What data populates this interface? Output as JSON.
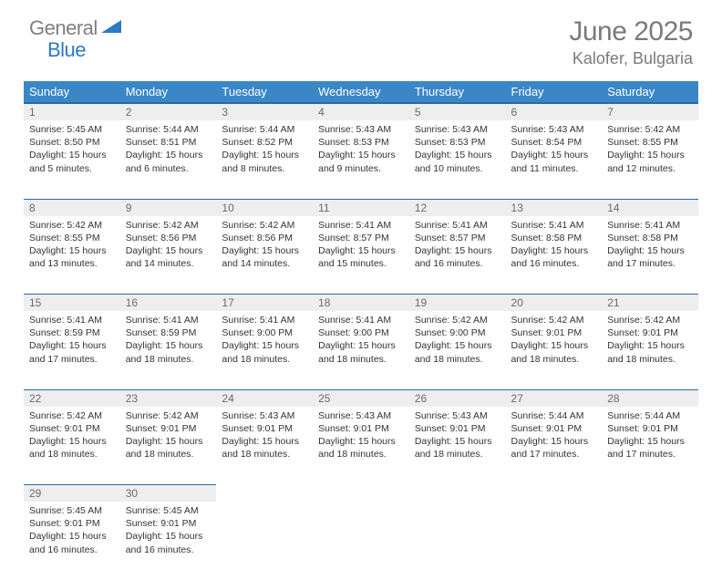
{
  "logo": {
    "gray": "General",
    "blue": "Blue"
  },
  "title": "June 2025",
  "location": "Kalofer, Bulgaria",
  "colors": {
    "header_bg": "#3a87c8",
    "header_border": "#2a6aa3",
    "daynum_bg": "#eeeeee",
    "text": "#333333",
    "muted": "#7a7a7a",
    "logo_blue": "#2f78c3"
  },
  "day_headers": [
    "Sunday",
    "Monday",
    "Tuesday",
    "Wednesday",
    "Thursday",
    "Friday",
    "Saturday"
  ],
  "weeks": [
    [
      {
        "n": "1",
        "sr": "5:45 AM",
        "ss": "8:50 PM",
        "dl": "15 hours and 5 minutes."
      },
      {
        "n": "2",
        "sr": "5:44 AM",
        "ss": "8:51 PM",
        "dl": "15 hours and 6 minutes."
      },
      {
        "n": "3",
        "sr": "5:44 AM",
        "ss": "8:52 PM",
        "dl": "15 hours and 8 minutes."
      },
      {
        "n": "4",
        "sr": "5:43 AM",
        "ss": "8:53 PM",
        "dl": "15 hours and 9 minutes."
      },
      {
        "n": "5",
        "sr": "5:43 AM",
        "ss": "8:53 PM",
        "dl": "15 hours and 10 minutes."
      },
      {
        "n": "6",
        "sr": "5:43 AM",
        "ss": "8:54 PM",
        "dl": "15 hours and 11 minutes."
      },
      {
        "n": "7",
        "sr": "5:42 AM",
        "ss": "8:55 PM",
        "dl": "15 hours and 12 minutes."
      }
    ],
    [
      {
        "n": "8",
        "sr": "5:42 AM",
        "ss": "8:55 PM",
        "dl": "15 hours and 13 minutes."
      },
      {
        "n": "9",
        "sr": "5:42 AM",
        "ss": "8:56 PM",
        "dl": "15 hours and 14 minutes."
      },
      {
        "n": "10",
        "sr": "5:42 AM",
        "ss": "8:56 PM",
        "dl": "15 hours and 14 minutes."
      },
      {
        "n": "11",
        "sr": "5:41 AM",
        "ss": "8:57 PM",
        "dl": "15 hours and 15 minutes."
      },
      {
        "n": "12",
        "sr": "5:41 AM",
        "ss": "8:57 PM",
        "dl": "15 hours and 16 minutes."
      },
      {
        "n": "13",
        "sr": "5:41 AM",
        "ss": "8:58 PM",
        "dl": "15 hours and 16 minutes."
      },
      {
        "n": "14",
        "sr": "5:41 AM",
        "ss": "8:58 PM",
        "dl": "15 hours and 17 minutes."
      }
    ],
    [
      {
        "n": "15",
        "sr": "5:41 AM",
        "ss": "8:59 PM",
        "dl": "15 hours and 17 minutes."
      },
      {
        "n": "16",
        "sr": "5:41 AM",
        "ss": "8:59 PM",
        "dl": "15 hours and 18 minutes."
      },
      {
        "n": "17",
        "sr": "5:41 AM",
        "ss": "9:00 PM",
        "dl": "15 hours and 18 minutes."
      },
      {
        "n": "18",
        "sr": "5:41 AM",
        "ss": "9:00 PM",
        "dl": "15 hours and 18 minutes."
      },
      {
        "n": "19",
        "sr": "5:42 AM",
        "ss": "9:00 PM",
        "dl": "15 hours and 18 minutes."
      },
      {
        "n": "20",
        "sr": "5:42 AM",
        "ss": "9:01 PM",
        "dl": "15 hours and 18 minutes."
      },
      {
        "n": "21",
        "sr": "5:42 AM",
        "ss": "9:01 PM",
        "dl": "15 hours and 18 minutes."
      }
    ],
    [
      {
        "n": "22",
        "sr": "5:42 AM",
        "ss": "9:01 PM",
        "dl": "15 hours and 18 minutes."
      },
      {
        "n": "23",
        "sr": "5:42 AM",
        "ss": "9:01 PM",
        "dl": "15 hours and 18 minutes."
      },
      {
        "n": "24",
        "sr": "5:43 AM",
        "ss": "9:01 PM",
        "dl": "15 hours and 18 minutes."
      },
      {
        "n": "25",
        "sr": "5:43 AM",
        "ss": "9:01 PM",
        "dl": "15 hours and 18 minutes."
      },
      {
        "n": "26",
        "sr": "5:43 AM",
        "ss": "9:01 PM",
        "dl": "15 hours and 18 minutes."
      },
      {
        "n": "27",
        "sr": "5:44 AM",
        "ss": "9:01 PM",
        "dl": "15 hours and 17 minutes."
      },
      {
        "n": "28",
        "sr": "5:44 AM",
        "ss": "9:01 PM",
        "dl": "15 hours and 17 minutes."
      }
    ],
    [
      {
        "n": "29",
        "sr": "5:45 AM",
        "ss": "9:01 PM",
        "dl": "15 hours and 16 minutes."
      },
      {
        "n": "30",
        "sr": "5:45 AM",
        "ss": "9:01 PM",
        "dl": "15 hours and 16 minutes."
      },
      null,
      null,
      null,
      null,
      null
    ]
  ],
  "labels": {
    "sunrise": "Sunrise: ",
    "sunset": "Sunset: ",
    "daylight": "Daylight: "
  }
}
